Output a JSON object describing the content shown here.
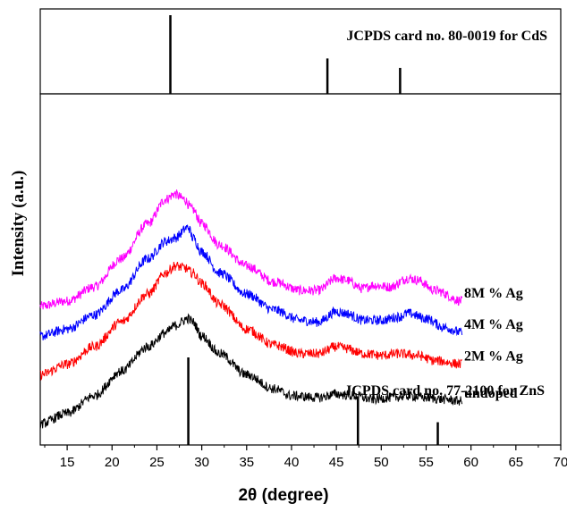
{
  "chart_data": {
    "type": "line",
    "xlabel": "2θ (degree)",
    "ylabel": "Intensity (a.u.)",
    "xlim": [
      12,
      70
    ],
    "xticks": [
      15,
      20,
      25,
      30,
      35,
      40,
      45,
      50,
      55,
      60,
      65,
      70
    ],
    "grid": false,
    "series": [
      {
        "name": "8M % Ag",
        "color": "#ff00ff",
        "points": [
          [
            12,
            0.395
          ],
          [
            15,
            0.41
          ],
          [
            18,
            0.45
          ],
          [
            21,
            0.53
          ],
          [
            24,
            0.63
          ],
          [
            26,
            0.7
          ],
          [
            27,
            0.715
          ],
          [
            28,
            0.7
          ],
          [
            29,
            0.67
          ],
          [
            30,
            0.63
          ],
          [
            32,
            0.57
          ],
          [
            35,
            0.51
          ],
          [
            38,
            0.465
          ],
          [
            41,
            0.44
          ],
          [
            43,
            0.44
          ],
          [
            45,
            0.475
          ],
          [
            46,
            0.47
          ],
          [
            48,
            0.445
          ],
          [
            49,
            0.455
          ],
          [
            51,
            0.45
          ],
          [
            53,
            0.475
          ],
          [
            54,
            0.47
          ],
          [
            56,
            0.44
          ],
          [
            59,
            0.41
          ]
        ]
      },
      {
        "name": "4M % Ag",
        "color": "#0000ff",
        "points": [
          [
            12,
            0.31
          ],
          [
            15,
            0.33
          ],
          [
            18,
            0.37
          ],
          [
            21,
            0.44
          ],
          [
            24,
            0.53
          ],
          [
            26,
            0.58
          ],
          [
            27,
            0.59
          ],
          [
            28.5,
            0.62
          ],
          [
            29,
            0.59
          ],
          [
            30,
            0.55
          ],
          [
            32,
            0.49
          ],
          [
            35,
            0.43
          ],
          [
            38,
            0.385
          ],
          [
            41,
            0.355
          ],
          [
            43,
            0.35
          ],
          [
            45,
            0.38
          ],
          [
            46,
            0.375
          ],
          [
            48,
            0.355
          ],
          [
            50,
            0.355
          ],
          [
            52,
            0.365
          ],
          [
            53,
            0.375
          ],
          [
            55,
            0.36
          ],
          [
            57,
            0.335
          ],
          [
            59,
            0.32
          ]
        ]
      },
      {
        "name": "2M % Ag",
        "color": "#ff0000",
        "points": [
          [
            12,
            0.2
          ],
          [
            15,
            0.23
          ],
          [
            18,
            0.28
          ],
          [
            21,
            0.35
          ],
          [
            24,
            0.43
          ],
          [
            26,
            0.49
          ],
          [
            27,
            0.51
          ],
          [
            28,
            0.505
          ],
          [
            29,
            0.49
          ],
          [
            30,
            0.46
          ],
          [
            32,
            0.4
          ],
          [
            35,
            0.33
          ],
          [
            38,
            0.285
          ],
          [
            41,
            0.26
          ],
          [
            43,
            0.26
          ],
          [
            45,
            0.28
          ],
          [
            46,
            0.275
          ],
          [
            48,
            0.26
          ],
          [
            50,
            0.255
          ],
          [
            52,
            0.26
          ],
          [
            54,
            0.255
          ],
          [
            56,
            0.24
          ],
          [
            59,
            0.23
          ]
        ]
      },
      {
        "name": "undoped",
        "color": "#000000",
        "points": [
          [
            12,
            0.06
          ],
          [
            15,
            0.09
          ],
          [
            18,
            0.14
          ],
          [
            21,
            0.21
          ],
          [
            24,
            0.28
          ],
          [
            26,
            0.32
          ],
          [
            27,
            0.34
          ],
          [
            28.5,
            0.36
          ],
          [
            29,
            0.35
          ],
          [
            30,
            0.31
          ],
          [
            32,
            0.26
          ],
          [
            35,
            0.2
          ],
          [
            38,
            0.16
          ],
          [
            40,
            0.14
          ],
          [
            43,
            0.135
          ],
          [
            45,
            0.145
          ],
          [
            47,
            0.14
          ],
          [
            49,
            0.13
          ],
          [
            51,
            0.135
          ],
          [
            53,
            0.14
          ],
          [
            55,
            0.135
          ],
          [
            57,
            0.13
          ],
          [
            59,
            0.125
          ]
        ]
      }
    ],
    "reference_patterns": [
      {
        "label": "JCPDS card no. 80-0019 for CdS",
        "position": "top",
        "peaks": [
          [
            26.5,
            1.0
          ],
          [
            44.0,
            0.45
          ],
          [
            52.1,
            0.33
          ]
        ]
      },
      {
        "label": "JCPDS card no. 77-2100 for ZnS",
        "position": "bottom",
        "peaks": [
          [
            28.5,
            1.0
          ],
          [
            47.4,
            0.55
          ],
          [
            56.3,
            0.26
          ]
        ]
      }
    ]
  }
}
